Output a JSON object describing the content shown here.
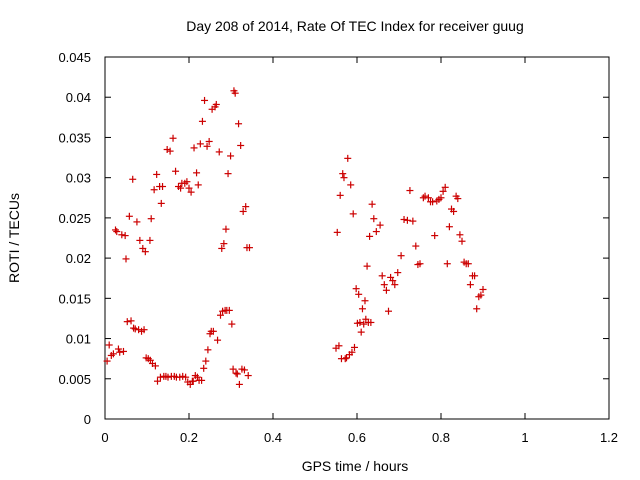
{
  "chart_data": {
    "type": "scatter",
    "title": "Day 208 of 2014, Rate Of TEC Index for receiver guug",
    "xlabel": "GPS time / hours",
    "ylabel": "ROTI / TECUs",
    "xlim": [
      0,
      1.2
    ],
    "ylim": [
      0,
      0.045
    ],
    "grid": false,
    "xticks": [
      0,
      0.2,
      0.4,
      0.6,
      0.8,
      1,
      1.2
    ],
    "xtick_labels": [
      "0",
      "0.2",
      "0.4",
      "0.6",
      "0.8",
      "1",
      "1.2"
    ],
    "yticks": [
      0,
      0.005,
      0.01,
      0.015,
      0.02,
      0.025,
      0.03,
      0.035,
      0.04,
      0.045
    ],
    "ytick_labels": [
      "0",
      "0.005",
      "0.01",
      "0.015",
      "0.02",
      "0.025",
      "0.03",
      "0.035",
      "0.04",
      "0.045"
    ],
    "marker": "+",
    "marker_color": "#cc0000",
    "series": [
      {
        "name": "ROTI",
        "points": [
          [
            0.005,
            0.0072
          ],
          [
            0.01,
            0.0092
          ],
          [
            0.015,
            0.0079
          ],
          [
            0.02,
            0.0081
          ],
          [
            0.025,
            0.0235
          ],
          [
            0.028,
            0.0233
          ],
          [
            0.032,
            0.0087
          ],
          [
            0.035,
            0.0083
          ],
          [
            0.04,
            0.0229
          ],
          [
            0.044,
            0.0084
          ],
          [
            0.048,
            0.0228
          ],
          [
            0.05,
            0.0199
          ],
          [
            0.053,
            0.0121
          ],
          [
            0.058,
            0.0252
          ],
          [
            0.062,
            0.0122
          ],
          [
            0.066,
            0.0298
          ],
          [
            0.068,
            0.0113
          ],
          [
            0.072,
            0.0112
          ],
          [
            0.076,
            0.0245
          ],
          [
            0.08,
            0.0111
          ],
          [
            0.083,
            0.0222
          ],
          [
            0.087,
            0.0109
          ],
          [
            0.09,
            0.0212
          ],
          [
            0.093,
            0.0111
          ],
          [
            0.096,
            0.0208
          ],
          [
            0.098,
            0.0076
          ],
          [
            0.103,
            0.0075
          ],
          [
            0.107,
            0.0222
          ],
          [
            0.108,
            0.0073
          ],
          [
            0.11,
            0.0249
          ],
          [
            0.113,
            0.0069
          ],
          [
            0.117,
            0.0285
          ],
          [
            0.12,
            0.0066
          ],
          [
            0.123,
            0.0304
          ],
          [
            0.125,
            0.0047
          ],
          [
            0.13,
            0.0289
          ],
          [
            0.132,
            0.0052
          ],
          [
            0.134,
            0.0268
          ],
          [
            0.137,
            0.0289
          ],
          [
            0.14,
            0.0053
          ],
          [
            0.145,
            0.0053
          ],
          [
            0.148,
            0.0335
          ],
          [
            0.15,
            0.0052
          ],
          [
            0.155,
            0.0333
          ],
          [
            0.158,
            0.0053
          ],
          [
            0.162,
            0.0349
          ],
          [
            0.165,
            0.0053
          ],
          [
            0.168,
            0.0308
          ],
          [
            0.17,
            0.0052
          ],
          [
            0.175,
            0.0289
          ],
          [
            0.178,
            0.0052
          ],
          [
            0.18,
            0.0287
          ],
          [
            0.183,
            0.0293
          ],
          [
            0.185,
            0.0053
          ],
          [
            0.19,
            0.0293
          ],
          [
            0.192,
            0.0052
          ],
          [
            0.195,
            0.0295
          ],
          [
            0.197,
            0.0046
          ],
          [
            0.2,
            0.0287
          ],
          [
            0.203,
            0.0043
          ],
          [
            0.205,
            0.0282
          ],
          [
            0.208,
            0.0047
          ],
          [
            0.21,
            0.0047
          ],
          [
            0.212,
            0.0337
          ],
          [
            0.215,
            0.0054
          ],
          [
            0.218,
            0.0306
          ],
          [
            0.22,
            0.0052
          ],
          [
            0.222,
            0.0291
          ],
          [
            0.224,
            0.0048
          ],
          [
            0.227,
            0.0342
          ],
          [
            0.23,
            0.0048
          ],
          [
            0.232,
            0.037
          ],
          [
            0.235,
            0.0063
          ],
          [
            0.237,
            0.0396
          ],
          [
            0.24,
            0.0072
          ],
          [
            0.243,
            0.0339
          ],
          [
            0.245,
            0.0086
          ],
          [
            0.248,
            0.0345
          ],
          [
            0.25,
            0.0106
          ],
          [
            0.253,
            0.0109
          ],
          [
            0.255,
            0.0385
          ],
          [
            0.258,
            0.0109
          ],
          [
            0.262,
            0.0388
          ],
          [
            0.265,
            0.0391
          ],
          [
            0.268,
            0.0098
          ],
          [
            0.272,
            0.0332
          ],
          [
            0.275,
            0.0129
          ],
          [
            0.278,
            0.0212
          ],
          [
            0.28,
            0.0134
          ],
          [
            0.283,
            0.0218
          ],
          [
            0.286,
            0.0135
          ],
          [
            0.288,
            0.0236
          ],
          [
            0.29,
            0.0135
          ],
          [
            0.293,
            0.0305
          ],
          [
            0.296,
            0.0135
          ],
          [
            0.299,
            0.0327
          ],
          [
            0.302,
            0.0118
          ],
          [
            0.305,
            0.0062
          ],
          [
            0.307,
            0.0408
          ],
          [
            0.31,
            0.0405
          ],
          [
            0.312,
            0.0057
          ],
          [
            0.315,
            0.0056
          ],
          [
            0.318,
            0.0367
          ],
          [
            0.32,
            0.0043
          ],
          [
            0.323,
            0.034
          ],
          [
            0.326,
            0.0062
          ],
          [
            0.329,
            0.0258
          ],
          [
            0.332,
            0.0061
          ],
          [
            0.335,
            0.0264
          ],
          [
            0.338,
            0.0213
          ],
          [
            0.341,
            0.0054
          ],
          [
            0.344,
            0.0213
          ],
          [
            0.55,
            0.0088
          ],
          [
            0.553,
            0.0232
          ],
          [
            0.557,
            0.0091
          ],
          [
            0.56,
            0.0278
          ],
          [
            0.563,
            0.0075
          ],
          [
            0.566,
            0.0305
          ],
          [
            0.569,
            0.03
          ],
          [
            0.572,
            0.0075
          ],
          [
            0.575,
            0.0076
          ],
          [
            0.578,
            0.0324
          ],
          [
            0.582,
            0.008
          ],
          [
            0.585,
            0.0291
          ],
          [
            0.588,
            0.0083
          ],
          [
            0.591,
            0.0255
          ],
          [
            0.594,
            0.0089
          ],
          [
            0.598,
            0.0162
          ],
          [
            0.601,
            0.0119
          ],
          [
            0.604,
            0.0155
          ],
          [
            0.607,
            0.012
          ],
          [
            0.61,
            0.0108
          ],
          [
            0.613,
            0.0137
          ],
          [
            0.616,
            0.0118
          ],
          [
            0.619,
            0.0147
          ],
          [
            0.621,
            0.0124
          ],
          [
            0.624,
            0.019
          ],
          [
            0.627,
            0.012
          ],
          [
            0.63,
            0.0227
          ],
          [
            0.633,
            0.012
          ],
          [
            0.636,
            0.0267
          ],
          [
            0.64,
            0.0249
          ],
          [
            0.646,
            0.0233
          ],
          [
            0.655,
            0.0241
          ],
          [
            0.66,
            0.0178
          ],
          [
            0.665,
            0.0167
          ],
          [
            0.67,
            0.016
          ],
          [
            0.675,
            0.0134
          ],
          [
            0.68,
            0.0176
          ],
          [
            0.685,
            0.0172
          ],
          [
            0.69,
            0.0167
          ],
          [
            0.697,
            0.0182
          ],
          [
            0.705,
            0.0203
          ],
          [
            0.712,
            0.0248
          ],
          [
            0.72,
            0.0247
          ],
          [
            0.726,
            0.0284
          ],
          [
            0.733,
            0.0246
          ],
          [
            0.74,
            0.0215
          ],
          [
            0.745,
            0.0192
          ],
          [
            0.75,
            0.0193
          ],
          [
            0.758,
            0.0275
          ],
          [
            0.762,
            0.0277
          ],
          [
            0.77,
            0.0275
          ],
          [
            0.775,
            0.027
          ],
          [
            0.78,
            0.027
          ],
          [
            0.785,
            0.0228
          ],
          [
            0.79,
            0.0271
          ],
          [
            0.795,
            0.0273
          ],
          [
            0.8,
            0.0275
          ],
          [
            0.805,
            0.0283
          ],
          [
            0.81,
            0.0288
          ],
          [
            0.815,
            0.0193
          ],
          [
            0.82,
            0.0239
          ],
          [
            0.825,
            0.0261
          ],
          [
            0.83,
            0.0258
          ],
          [
            0.836,
            0.0277
          ],
          [
            0.84,
            0.0274
          ],
          [
            0.845,
            0.0229
          ],
          [
            0.85,
            0.0221
          ],
          [
            0.855,
            0.0195
          ],
          [
            0.86,
            0.0193
          ],
          [
            0.865,
            0.0193
          ],
          [
            0.87,
            0.0167
          ],
          [
            0.875,
            0.0178
          ],
          [
            0.88,
            0.0178
          ],
          [
            0.885,
            0.0137
          ],
          [
            0.89,
            0.0152
          ],
          [
            0.895,
            0.0154
          ],
          [
            0.9,
            0.0161
          ]
        ]
      }
    ]
  }
}
